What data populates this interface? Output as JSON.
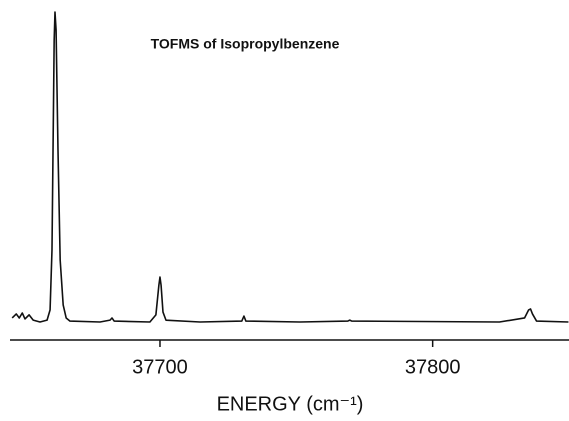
{
  "chart_data": {
    "type": "line",
    "title": "TOFMS of Isopropylbenzene",
    "xlabel": "ENERGY (cm⁻¹)",
    "x": [
      37645.8,
      37647.3,
      37648.4,
      37649.5,
      37650.5,
      37652.0,
      37653.5,
      37656.0,
      37658.6,
      37659.7,
      37660.4,
      37661.2,
      37661.5,
      37661.9,
      37662.6,
      37663.4,
      37664.5,
      37665.6,
      37667.0,
      37678.0,
      37681.7,
      37682.4,
      37683.2,
      37696.3,
      37698.5,
      37699.6,
      37700.0,
      37700.4,
      37701.1,
      37702.2,
      37714.7,
      37730.0,
      37730.8,
      37731.5,
      37751.3,
      37768.9,
      37769.6,
      37770.3,
      37824.5,
      37833.7,
      37835.2,
      37835.9,
      37836.6,
      37838.1,
      37849.8
    ],
    "values": [
      1.3,
      2.6,
      1.3,
      2.9,
      1.0,
      2.3,
      0.6,
      0,
      0.6,
      3.9,
      23.2,
      91.0,
      100,
      94.2,
      55.5,
      20.0,
      5.5,
      1.3,
      0.3,
      0,
      0.6,
      1.3,
      0.3,
      0,
      2.3,
      11.9,
      14.5,
      11.9,
      3.2,
      0.6,
      0,
      0.3,
      1.9,
      0.3,
      0,
      0.3,
      0.6,
      0.3,
      0,
      1.3,
      3.9,
      4.2,
      2.6,
      0.3,
      0
    ],
    "color": "#111111",
    "xlim": [
      37645,
      37850
    ],
    "xticks": [
      37700,
      37800
    ],
    "ylim": [
      0,
      100
    ]
  }
}
